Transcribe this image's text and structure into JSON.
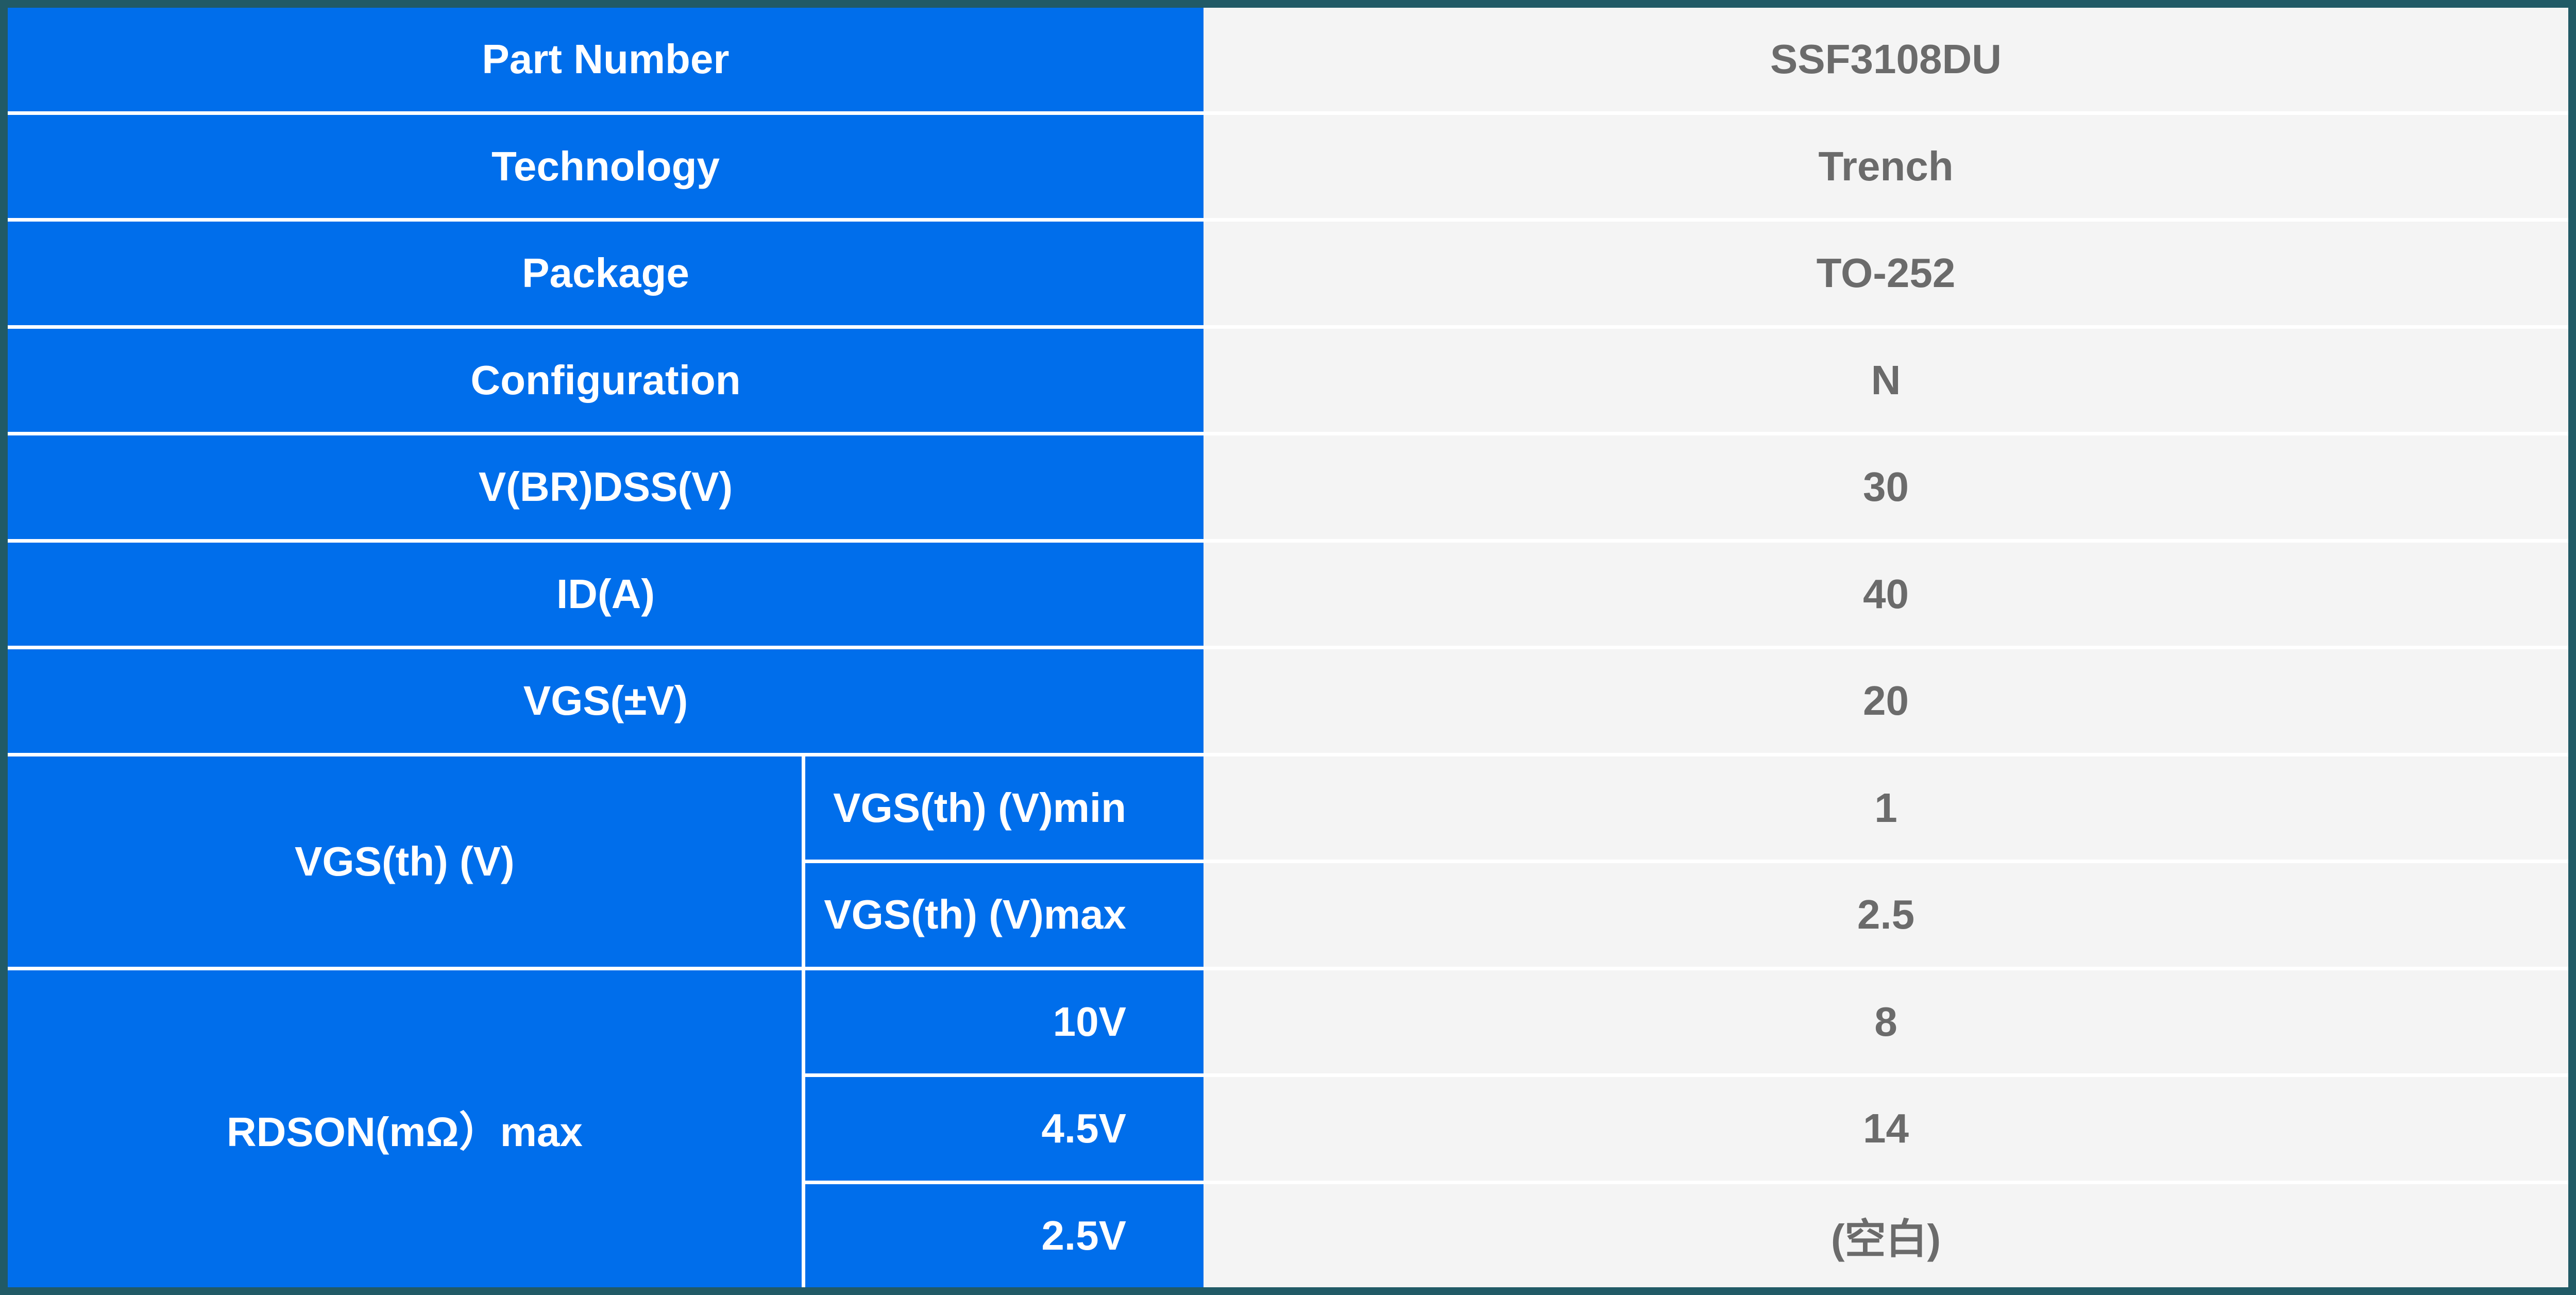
{
  "colors": {
    "frame": "#215a66",
    "label_bg": "#006eeb",
    "value_bg": "#f4f4f4",
    "value_text": "#6b6b6b"
  },
  "rows": [
    {
      "label": "Part Number",
      "value": "SSF3108DU"
    },
    {
      "label": "Technology",
      "value": "Trench"
    },
    {
      "label": "Package",
      "value": "TO-252"
    },
    {
      "label": "Configuration",
      "value": "N"
    },
    {
      "label": "V(BR)DSS(V)",
      "value": "30"
    },
    {
      "label": "ID(A)",
      "value": "40"
    },
    {
      "label": "VGS(±V)",
      "value": "20"
    }
  ],
  "vgs_th": {
    "label": "VGS(th) (V)",
    "sub": [
      {
        "label": "VGS(th) (V)min",
        "value": "1"
      },
      {
        "label": "VGS(th) (V)max",
        "value": "2.5"
      }
    ]
  },
  "rdson": {
    "label": "RDSON(mΩ）max",
    "sub": [
      {
        "label": "10V",
        "value": "8"
      },
      {
        "label": "4.5V",
        "value": "14"
      },
      {
        "label": "2.5V",
        "value": "(空白)"
      }
    ]
  }
}
